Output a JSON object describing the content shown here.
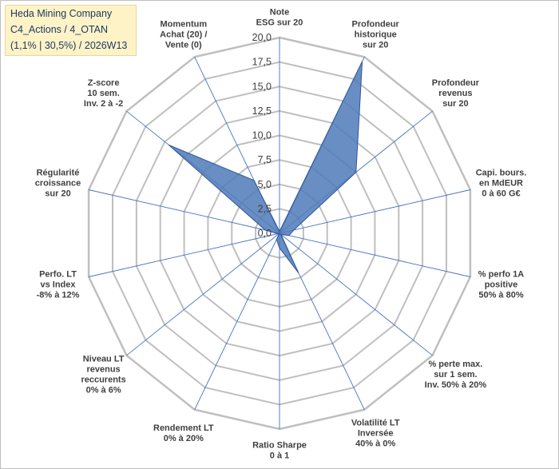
{
  "header": {
    "company": "Heda Mining Company",
    "portfolio": "C4_Actions / 4_OTAN",
    "summary": "(1,1% | 30,5%) / 2026W13"
  },
  "chart_data": {
    "type": "radar",
    "title": "",
    "rmin": 0,
    "rmax": 20,
    "grid": true,
    "tick_labels": [
      "0,0",
      "2,5",
      "5,0",
      "7,5",
      "10,0",
      "12,5",
      "15,0",
      "17,5",
      "20,0"
    ],
    "colors": {
      "fill": "#4f7ab8",
      "stroke": "#2f5597",
      "grid": "#bfbfbf",
      "spoke": "#4472c4"
    },
    "axes": [
      {
        "lines": [
          "Note",
          "ESG sur 20"
        ]
      },
      {
        "lines": [
          "Profondeur",
          "historique",
          "sur 20"
        ]
      },
      {
        "lines": [
          "Profondeur",
          "revenus",
          "sur 20"
        ]
      },
      {
        "lines": [
          "Capi. bours.",
          "en MdEUR",
          "0 à 60 G€"
        ]
      },
      {
        "lines": [
          "% perfo 1A",
          "positive",
          "50% à 80%"
        ]
      },
      {
        "lines": [
          "% perte max.",
          "sur 1 sem.",
          "Inv. 50% à 20%"
        ]
      },
      {
        "lines": [
          "Volatilité LT",
          "Inversée",
          "40% à 0%"
        ]
      },
      {
        "lines": [
          "Ratio Sharpe",
          "0 à 1"
        ]
      },
      {
        "lines": [
          "Rendement LT",
          "0% à 20%"
        ]
      },
      {
        "lines": [
          "Niveau LT",
          "revenus",
          "reccurents",
          "0% à 6%"
        ]
      },
      {
        "lines": [
          "Perfo. LT",
          "vs Index",
          "-8% à 12%"
        ]
      },
      {
        "lines": [
          "Régularité",
          "croissance",
          "sur 20"
        ]
      },
      {
        "lines": [
          "Z-score",
          "10 sem.",
          "Inv. 2 à -2"
        ]
      },
      {
        "lines": [
          "Momentum",
          "Achat (20) /",
          "Vente (0)"
        ]
      }
    ],
    "series": [
      {
        "values": [
          0.2,
          19.5,
          10.0,
          1.5,
          1.0,
          0.2,
          4.5,
          1.5,
          0.7,
          0.0,
          0.2,
          1.5,
          14.5,
          6.0
        ]
      }
    ]
  }
}
